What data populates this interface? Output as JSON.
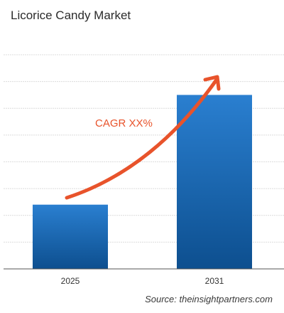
{
  "chart_data": {
    "type": "bar",
    "title": "Licorice Candy Market",
    "categories": [
      "2025",
      "2031"
    ],
    "values": [
      2.4,
      6.5
    ],
    "ylim": [
      0,
      8
    ],
    "xlabel": "",
    "ylabel": "",
    "grid": true,
    "annotation": "CAGR XX%",
    "source": "Source: theinsightpartners.com"
  },
  "colors": {
    "bar_top": "#2a7fd0",
    "bar_bottom": "#0d4f8f",
    "arrow": "#e8532b",
    "grid": "#dcdcdc",
    "axis": "#555555"
  }
}
